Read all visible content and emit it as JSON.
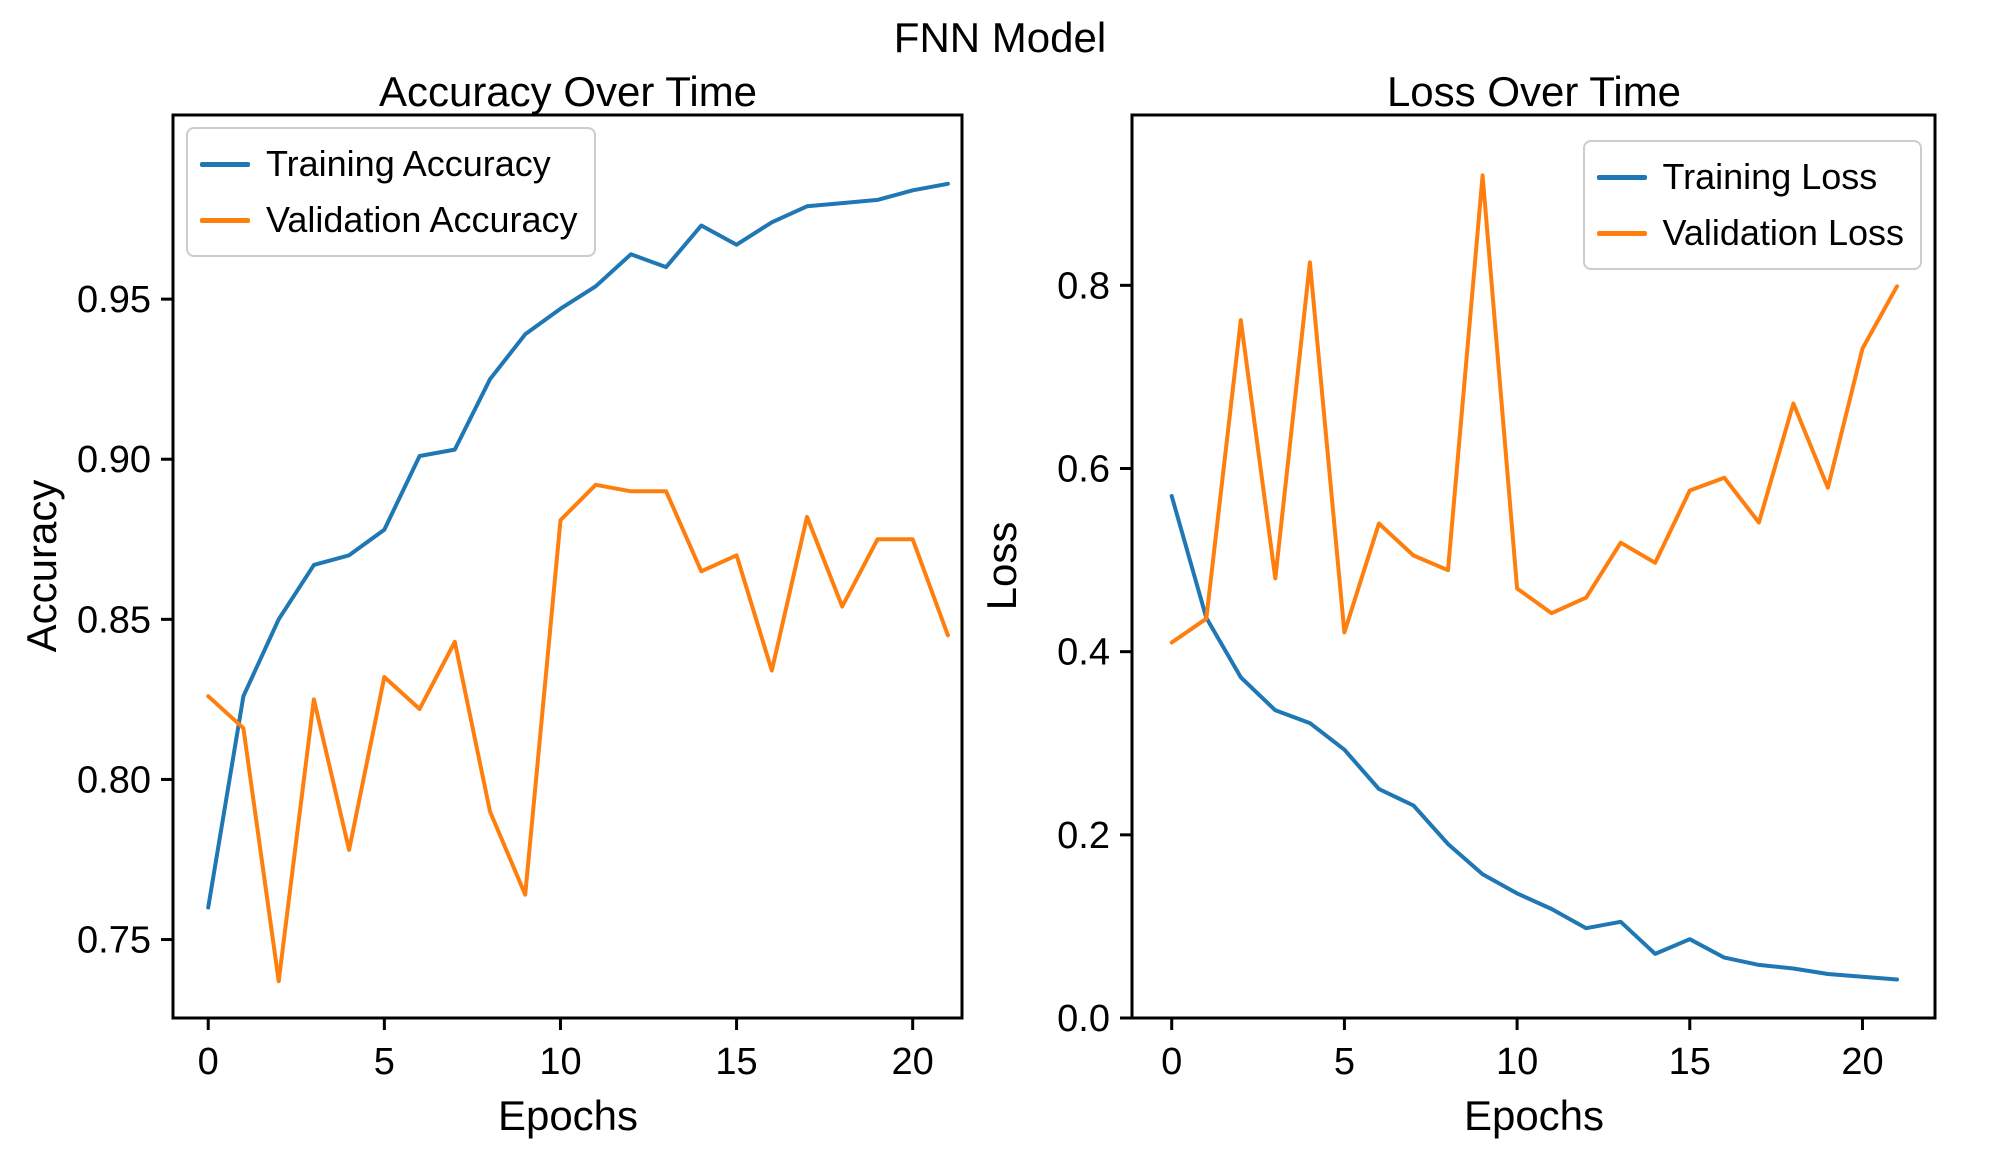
{
  "suptitle": "FNN Model",
  "colors": {
    "training": "#1f77b4",
    "validation": "#ff7f0e",
    "spine": "#000000",
    "legend_border": "#cccccc"
  },
  "chart_data": [
    {
      "type": "line",
      "title": "Accuracy Over Time",
      "xlabel": "Epochs",
      "ylabel": "Accuracy",
      "x": [
        0,
        1,
        2,
        3,
        4,
        5,
        6,
        7,
        8,
        9,
        10,
        11,
        12,
        13,
        14,
        15,
        16,
        17,
        18,
        19,
        20,
        21
      ],
      "series": [
        {
          "name": "Training Accuracy",
          "color": "#1f77b4",
          "values": [
            0.76,
            0.826,
            0.85,
            0.867,
            0.87,
            0.878,
            0.901,
            0.903,
            0.925,
            0.939,
            0.947,
            0.954,
            0.964,
            0.96,
            0.973,
            0.967,
            0.974,
            0.979,
            0.98,
            0.981,
            0.984,
            0.986
          ]
        },
        {
          "name": "Validation Accuracy",
          "color": "#ff7f0e",
          "values": [
            0.826,
            0.816,
            0.737,
            0.825,
            0.778,
            0.832,
            0.822,
            0.843,
            0.79,
            0.764,
            0.881,
            0.892,
            0.89,
            0.89,
            0.865,
            0.87,
            0.834,
            0.882,
            0.854,
            0.875,
            0.875,
            0.845
          ]
        }
      ],
      "xticks": [
        0,
        5,
        10,
        15,
        20
      ],
      "yticks": [
        0.75,
        0.8,
        0.85,
        0.9,
        0.95
      ],
      "ytick_decimals": 2,
      "xlim": [
        -1.0,
        21.4
      ],
      "ylim": [
        0.7255,
        1.0075
      ],
      "grid": false,
      "legend_position": "upper left"
    },
    {
      "type": "line",
      "title": "Loss Over Time",
      "xlabel": "Epochs",
      "ylabel": "Loss",
      "x": [
        0,
        1,
        2,
        3,
        4,
        5,
        6,
        7,
        8,
        9,
        10,
        11,
        12,
        13,
        14,
        15,
        16,
        17,
        18,
        19,
        20,
        21
      ],
      "series": [
        {
          "name": "Training Loss",
          "color": "#1f77b4",
          "values": [
            0.57,
            0.437,
            0.372,
            0.336,
            0.322,
            0.293,
            0.25,
            0.232,
            0.19,
            0.157,
            0.136,
            0.119,
            0.098,
            0.105,
            0.07,
            0.086,
            0.066,
            0.058,
            0.054,
            0.048,
            0.045,
            0.042
          ]
        },
        {
          "name": "Validation Loss",
          "color": "#ff7f0e",
          "values": [
            0.41,
            0.436,
            0.762,
            0.48,
            0.825,
            0.421,
            0.54,
            0.505,
            0.489,
            0.92,
            0.469,
            0.442,
            0.459,
            0.519,
            0.497,
            0.576,
            0.59,
            0.541,
            0.671,
            0.579,
            0.731,
            0.799
          ]
        }
      ],
      "xticks": [
        0,
        5,
        10,
        15,
        20
      ],
      "yticks": [
        0.0,
        0.2,
        0.4,
        0.6,
        0.8
      ],
      "ytick_decimals": 1,
      "xlim": [
        -1.15,
        22.1
      ],
      "ylim": [
        0.0,
        0.986
      ],
      "grid": false,
      "legend_position": "upper right"
    }
  ]
}
